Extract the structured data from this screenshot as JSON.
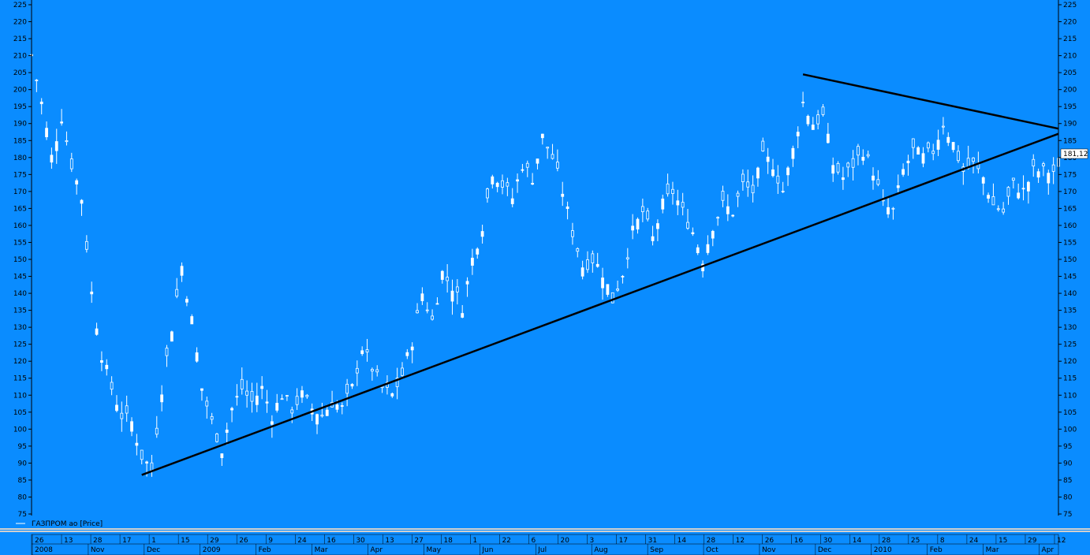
{
  "colors": {
    "background": "#0a8cff",
    "candle": "#ffffff",
    "trendline": "#000000",
    "axis": "#000000",
    "axis_text": "#000000",
    "last_price_box": "#ffffff"
  },
  "legend": {
    "text": "ГАЗПРОМ ао [Price]"
  },
  "last_price": {
    "text": "181,12",
    "value": 181.12
  },
  "chart_data": {
    "type": "candlestick",
    "title": "",
    "series": [
      {
        "name": "ГАЗПРОМ ао [Price]"
      }
    ],
    "ylim": [
      75,
      225
    ],
    "y_ticks": [
      75,
      80,
      85,
      90,
      95,
      100,
      105,
      110,
      115,
      120,
      125,
      130,
      135,
      140,
      145,
      150,
      155,
      160,
      165,
      170,
      175,
      180,
      185,
      190,
      195,
      200,
      205,
      210,
      215,
      220,
      225
    ],
    "x_day_ticks": [
      "26",
      "13",
      "28",
      "17",
      "1",
      "15",
      "29",
      "26",
      "9",
      "24",
      "16",
      "30",
      "13",
      "27",
      "18",
      "1",
      "22",
      "6",
      "20",
      "3",
      "17",
      "31",
      "14",
      "28",
      "12",
      "26",
      "16",
      "30",
      "14",
      "28",
      "25",
      "8",
      "24",
      "15",
      "29",
      "12"
    ],
    "x_month_ticks": [
      "2008",
      "Nov",
      "Dec",
      "2009",
      "Feb",
      "Mar",
      "Apr",
      "May",
      "Jun",
      "Jul",
      "Aug",
      "Sep",
      "Oct",
      "Nov",
      "Dec",
      "2010",
      "Feb",
      "Mar",
      "Apr"
    ],
    "price_path": [
      [
        0,
        210
      ],
      [
        2,
        196
      ],
      [
        4,
        180
      ],
      [
        6,
        192
      ],
      [
        8,
        178
      ],
      [
        10,
        168
      ],
      [
        12,
        140
      ],
      [
        14,
        122
      ],
      [
        16,
        112
      ],
      [
        18,
        104
      ],
      [
        20,
        102
      ],
      [
        22,
        92
      ],
      [
        24,
        88
      ],
      [
        26,
        112
      ],
      [
        28,
        130
      ],
      [
        30,
        148
      ],
      [
        32,
        132
      ],
      [
        34,
        112
      ],
      [
        36,
        102
      ],
      [
        38,
        94
      ],
      [
        40,
        106
      ],
      [
        42,
        112
      ],
      [
        44,
        108
      ],
      [
        46,
        112
      ],
      [
        48,
        104
      ],
      [
        50,
        110
      ],
      [
        52,
        106
      ],
      [
        54,
        110
      ],
      [
        56,
        106
      ],
      [
        58,
        104
      ],
      [
        60,
        108
      ],
      [
        62,
        106
      ],
      [
        64,
        112
      ],
      [
        66,
        124
      ],
      [
        68,
        118
      ],
      [
        70,
        112
      ],
      [
        72,
        110
      ],
      [
        74,
        116
      ],
      [
        76,
        126
      ],
      [
        78,
        140
      ],
      [
        80,
        132
      ],
      [
        82,
        146
      ],
      [
        84,
        142
      ],
      [
        86,
        136
      ],
      [
        88,
        150
      ],
      [
        90,
        160
      ],
      [
        92,
        176
      ],
      [
        94,
        172
      ],
      [
        96,
        168
      ],
      [
        98,
        178
      ],
      [
        100,
        174
      ],
      [
        102,
        186
      ],
      [
        104,
        180
      ],
      [
        106,
        170
      ],
      [
        108,
        158
      ],
      [
        110,
        148
      ],
      [
        112,
        150
      ],
      [
        114,
        146
      ],
      [
        116,
        138
      ],
      [
        118,
        146
      ],
      [
        120,
        158
      ],
      [
        122,
        164
      ],
      [
        124,
        156
      ],
      [
        126,
        166
      ],
      [
        128,
        170
      ],
      [
        130,
        164
      ],
      [
        132,
        158
      ],
      [
        134,
        150
      ],
      [
        136,
        160
      ],
      [
        138,
        166
      ],
      [
        140,
        164
      ],
      [
        142,
        172
      ],
      [
        144,
        170
      ],
      [
        146,
        180
      ],
      [
        148,
        178
      ],
      [
        150,
        170
      ],
      [
        152,
        182
      ],
      [
        154,
        196
      ],
      [
        156,
        190
      ],
      [
        158,
        192
      ],
      [
        160,
        178
      ],
      [
        162,
        174
      ],
      [
        164,
        178
      ],
      [
        166,
        182
      ],
      [
        168,
        176
      ],
      [
        170,
        166
      ],
      [
        172,
        164
      ],
      [
        174,
        176
      ],
      [
        176,
        182
      ],
      [
        178,
        180
      ],
      [
        180,
        182
      ],
      [
        182,
        190
      ],
      [
        184,
        184
      ],
      [
        186,
        176
      ],
      [
        188,
        178
      ],
      [
        190,
        174
      ],
      [
        192,
        166
      ],
      [
        194,
        164
      ],
      [
        196,
        172
      ],
      [
        198,
        170
      ],
      [
        200,
        176
      ]
    ],
    "trendlines": [
      {
        "start": [
          22,
          86.5
        ],
        "end": [
          205,
          187
        ]
      },
      {
        "start": [
          154,
          204.5
        ],
        "end": [
          205,
          188.5
        ]
      }
    ]
  }
}
